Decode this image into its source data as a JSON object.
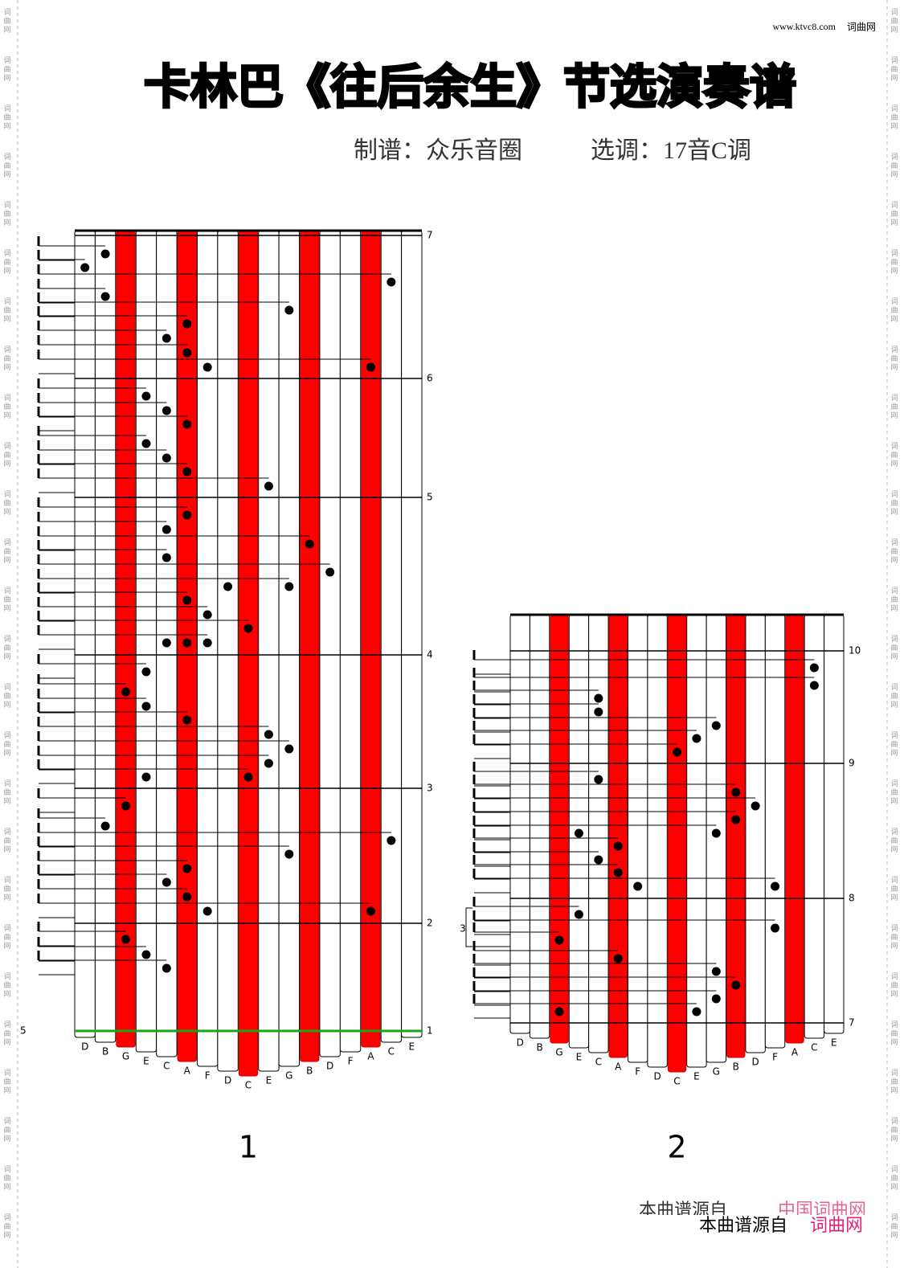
{
  "header": {
    "site": "www.ktvc8.com",
    "site_name": "词曲网",
    "title": "卡林巴《往后余生》节选演奏谱",
    "arranger": "制谱：众乐音圈",
    "key": "选调：17音C调"
  },
  "keys": [
    "D",
    "B",
    "G",
    "E",
    "C",
    "A",
    "F",
    "D",
    "C",
    "E",
    "G",
    "B",
    "D",
    "F",
    "A",
    "C",
    "E"
  ],
  "panels": [
    {
      "label": "1",
      "measures": [
        "7",
        "6",
        "5",
        "4",
        "3",
        "2",
        "1"
      ],
      "pickup": "5"
    },
    {
      "label": "2",
      "measures": [
        "10",
        "9",
        "8",
        "7"
      ],
      "triplet": "3"
    }
  ],
  "footer": {
    "faded_source": "本曲谱源自",
    "faded_site": "中国词曲网",
    "source": "本曲谱源自",
    "site": "词曲网"
  },
  "side_mark": "词曲网"
}
